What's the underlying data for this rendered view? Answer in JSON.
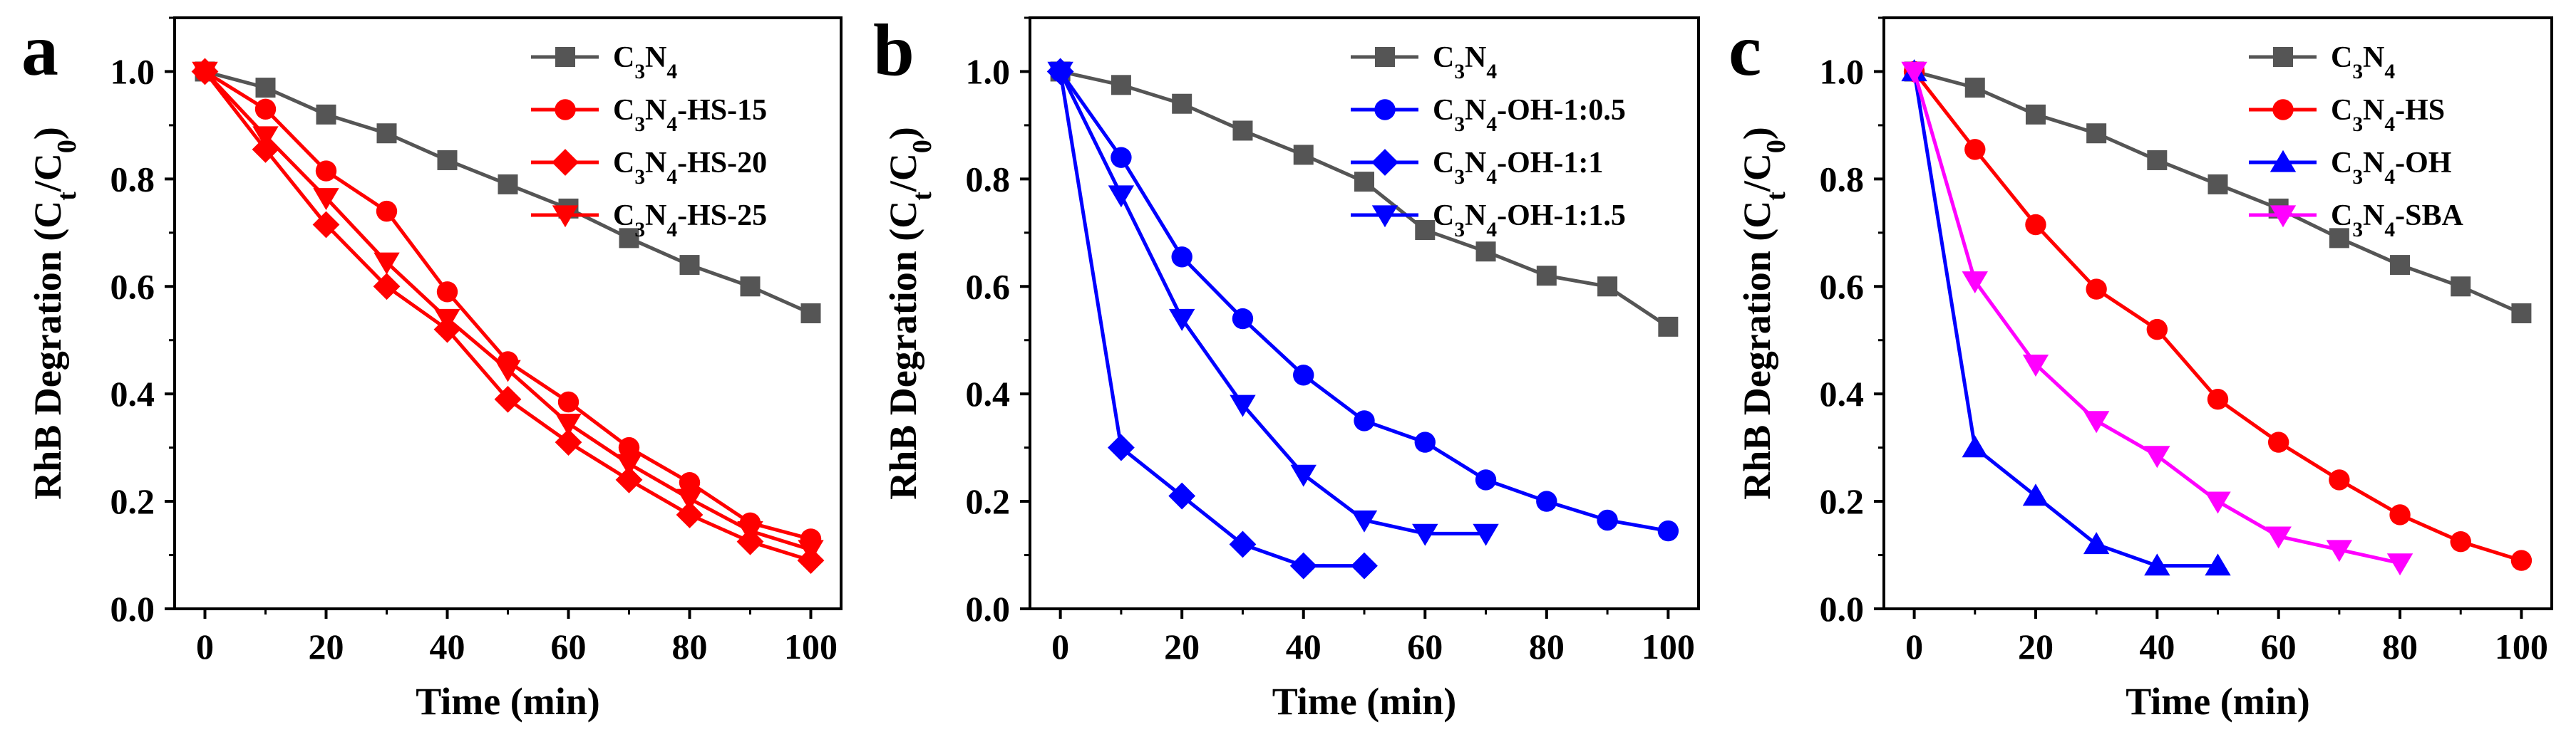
{
  "chart_data": [
    {
      "panel_label": "a",
      "type": "line",
      "xlabel": "Time (min)",
      "ylabel": "RhB Degration (Ct/C0)",
      "ylabel_parts": {
        "main": "RhB Degration (C",
        "sub1": "t",
        "mid": "/C",
        "sub2": "0",
        "end": ")"
      },
      "xlim": [
        -5,
        105
      ],
      "ylim": [
        0,
        1.1
      ],
      "xticks": [
        "0",
        "20",
        "40",
        "60",
        "80",
        "100"
      ],
      "yticks": [
        "0.0",
        "0.2",
        "0.4",
        "0.6",
        "0.8",
        "1.0"
      ],
      "legend_position": "top-right",
      "series": [
        {
          "name": "C3N4",
          "parts": [
            "C",
            "3",
            "N",
            "4",
            ""
          ],
          "color": "#555555",
          "marker": "square",
          "x": [
            0,
            10,
            20,
            30,
            40,
            50,
            60,
            70,
            80,
            90,
            100
          ],
          "y": [
            1.0,
            0.97,
            0.92,
            0.885,
            0.835,
            0.79,
            0.745,
            0.69,
            0.64,
            0.6,
            0.55
          ]
        },
        {
          "name": "C3N4-HS-15",
          "parts": [
            "C",
            "3",
            "N",
            "4",
            "-HS-15"
          ],
          "color": "#ff0000",
          "marker": "circle",
          "x": [
            0,
            10,
            20,
            30,
            40,
            50,
            60,
            70,
            80,
            90,
            100
          ],
          "y": [
            1.0,
            0.93,
            0.815,
            0.74,
            0.59,
            0.46,
            0.385,
            0.3,
            0.235,
            0.16,
            0.13
          ]
        },
        {
          "name": "C3N4-HS-20",
          "parts": [
            "C",
            "3",
            "N",
            "4",
            "-HS-20"
          ],
          "color": "#ff0000",
          "marker": "diamond",
          "x": [
            0,
            10,
            20,
            30,
            40,
            50,
            60,
            70,
            80,
            90,
            100
          ],
          "y": [
            1.0,
            0.855,
            0.715,
            0.6,
            0.52,
            0.39,
            0.31,
            0.24,
            0.175,
            0.125,
            0.09
          ]
        },
        {
          "name": "C3N4-HS-25",
          "parts": [
            "C",
            "3",
            "N",
            "4",
            "-HS-25"
          ],
          "color": "#ff0000",
          "marker": "triangle-down",
          "x": [
            0,
            10,
            20,
            30,
            40,
            50,
            60,
            70,
            80,
            90,
            100
          ],
          "y": [
            1.0,
            0.88,
            0.765,
            0.645,
            0.54,
            0.445,
            0.345,
            0.27,
            0.205,
            0.145,
            0.11
          ]
        }
      ]
    },
    {
      "panel_label": "b",
      "type": "line",
      "xlabel": "Time (min)",
      "ylabel": "RhB Degration (Ct/C0)",
      "ylabel_parts": {
        "main": "RhB Degration (C",
        "sub1": "t",
        "mid": "/C",
        "sub2": "0",
        "end": ")"
      },
      "xlim": [
        -5,
        105
      ],
      "ylim": [
        0,
        1.1
      ],
      "xticks": [
        "0",
        "20",
        "40",
        "60",
        "80",
        "100"
      ],
      "yticks": [
        "0.0",
        "0.2",
        "0.4",
        "0.6",
        "0.8",
        "1.0"
      ],
      "legend_position": "top-right",
      "series": [
        {
          "name": "C3N4",
          "parts": [
            "C",
            "3",
            "N",
            "4",
            ""
          ],
          "color": "#555555",
          "marker": "square",
          "x": [
            0,
            10,
            20,
            30,
            40,
            50,
            60,
            70,
            80,
            90,
            100
          ],
          "y": [
            1.0,
            0.975,
            0.94,
            0.89,
            0.845,
            0.795,
            0.705,
            0.665,
            0.62,
            0.6,
            0.525
          ]
        },
        {
          "name": "C3N4-OH-1:0.5",
          "parts": [
            "C",
            "3",
            "N",
            "4",
            "-OH-1:0.5"
          ],
          "color": "#0000ff",
          "marker": "circle",
          "x": [
            0,
            10,
            20,
            30,
            40,
            50,
            60,
            70,
            80,
            90,
            100
          ],
          "y": [
            1.0,
            0.84,
            0.655,
            0.54,
            0.435,
            0.35,
            0.31,
            0.24,
            0.2,
            0.165,
            0.145
          ]
        },
        {
          "name": "C3N4-OH-1:1",
          "parts": [
            "C",
            "3",
            "N",
            "4",
            "-OH-1:1"
          ],
          "color": "#0000ff",
          "marker": "diamond",
          "x": [
            0,
            10,
            20,
            30,
            40,
            50
          ],
          "y": [
            1.0,
            0.3,
            0.21,
            0.12,
            0.08,
            0.08
          ]
        },
        {
          "name": "C3N4-OH-1:1.5",
          "parts": [
            "C",
            "3",
            "N",
            "4",
            "-OH-1:1.5"
          ],
          "color": "#0000ff",
          "marker": "triangle-down",
          "x": [
            0,
            10,
            20,
            30,
            40,
            50,
            60,
            70
          ],
          "y": [
            1.0,
            0.77,
            0.54,
            0.38,
            0.25,
            0.165,
            0.14,
            0.14
          ]
        }
      ]
    },
    {
      "panel_label": "c",
      "type": "line",
      "xlabel": "Time (min)",
      "ylabel": "RhB Degration (Ct/C0)",
      "ylabel_parts": {
        "main": "RhB Degration (C",
        "sub1": "t",
        "mid": "/C",
        "sub2": "0",
        "end": ")"
      },
      "xlim": [
        -5,
        105
      ],
      "ylim": [
        0,
        1.1
      ],
      "xticks": [
        "0",
        "20",
        "40",
        "60",
        "80",
        "100"
      ],
      "yticks": [
        "0.0",
        "0.2",
        "0.4",
        "0.6",
        "0.8",
        "1.0"
      ],
      "legend_position": "top-right",
      "series": [
        {
          "name": "C3N4",
          "parts": [
            "C",
            "3",
            "N",
            "4",
            ""
          ],
          "color": "#555555",
          "marker": "square",
          "x": [
            0,
            10,
            20,
            30,
            40,
            50,
            60,
            70,
            80,
            90,
            100
          ],
          "y": [
            1.0,
            0.97,
            0.92,
            0.885,
            0.835,
            0.79,
            0.745,
            0.69,
            0.64,
            0.6,
            0.55
          ]
        },
        {
          "name": "C3N4-HS",
          "parts": [
            "C",
            "3",
            "N",
            "4",
            "-HS"
          ],
          "color": "#ff0000",
          "marker": "circle",
          "x": [
            0,
            10,
            20,
            30,
            40,
            50,
            60,
            70,
            80,
            90,
            100
          ],
          "y": [
            1.0,
            0.855,
            0.715,
            0.595,
            0.52,
            0.39,
            0.31,
            0.24,
            0.175,
            0.125,
            0.09
          ]
        },
        {
          "name": "C3N4-OH",
          "parts": [
            "C",
            "3",
            "N",
            "4",
            "-OH"
          ],
          "color": "#0000ff",
          "marker": "triangle-up",
          "x": [
            0,
            10,
            20,
            30,
            40,
            50
          ],
          "y": [
            1.0,
            0.3,
            0.21,
            0.12,
            0.08,
            0.08
          ]
        },
        {
          "name": "C3N4-SBA",
          "parts": [
            "C",
            "3",
            "N",
            "4",
            "-SBA"
          ],
          "color": "#ff00ff",
          "marker": "triangle-down",
          "x": [
            0,
            10,
            20,
            30,
            40,
            50,
            60,
            70,
            80
          ],
          "y": [
            1.0,
            0.61,
            0.455,
            0.35,
            0.285,
            0.2,
            0.135,
            0.11,
            0.085
          ]
        }
      ]
    }
  ]
}
